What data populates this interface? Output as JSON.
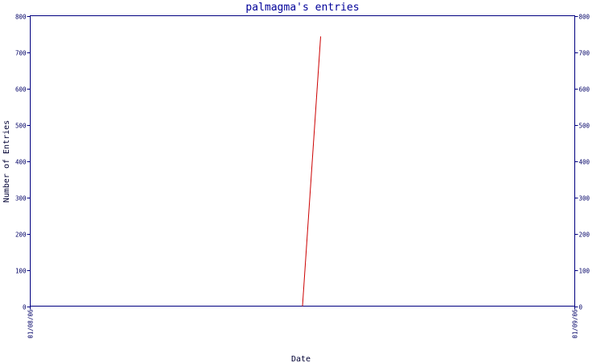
{
  "chart_data": {
    "type": "line",
    "title": "palmagma's entries",
    "xlabel": "Date",
    "ylabel": "Number of Entries",
    "ylim": [
      0,
      800
    ],
    "y_ticks": [
      0,
      100,
      200,
      300,
      400,
      500,
      600,
      700,
      800
    ],
    "x_ticks": [
      "01/08/06",
      "01/09/06"
    ],
    "xlim": [
      "2006-01-08",
      "2006-01-09"
    ],
    "series": [
      {
        "x": [
          "2006-01-08 12:00",
          "2006-01-08 12:48"
        ],
        "values": [
          0,
          743
        ],
        "color": "#cc0000"
      }
    ],
    "colors": {
      "axis": "#000080",
      "title": "#000099",
      "line": "#cc0000"
    }
  }
}
